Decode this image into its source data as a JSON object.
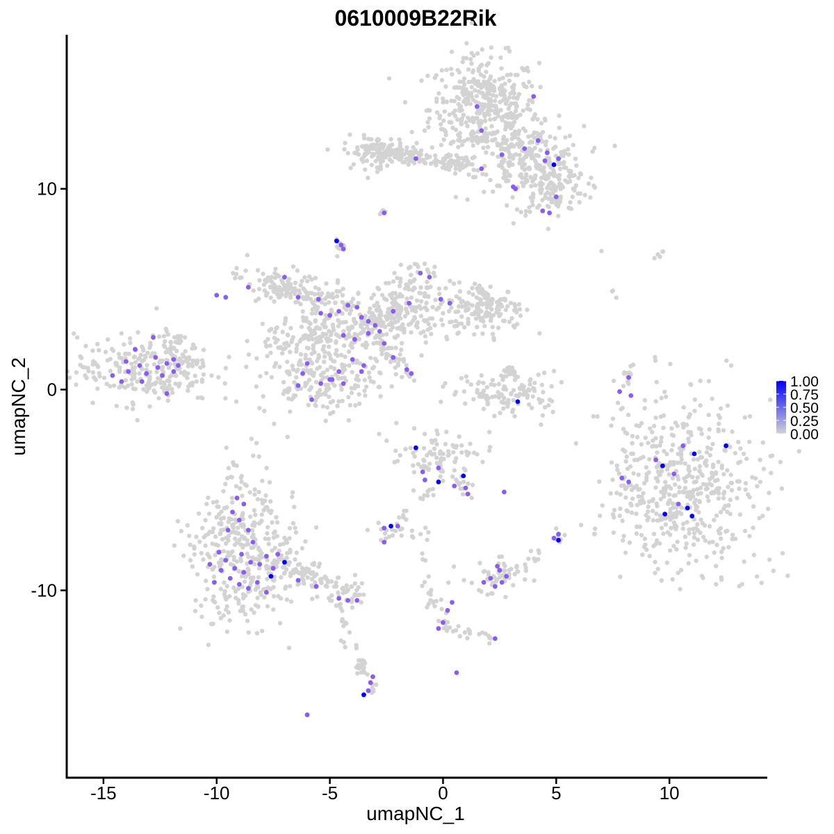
{
  "chart_data": {
    "type": "scatter",
    "title": "0610009B22Rik",
    "xlabel": "umapNC_1",
    "ylabel": "umapNC_2",
    "xlim": [
      -16.5,
      14.2
    ],
    "ylim": [
      -18.5,
      17.5
    ],
    "x_ticks": [
      -15,
      -10,
      -5,
      0,
      5,
      10
    ],
    "x_tick_labels": [
      "-15",
      "-10",
      "-5",
      "0",
      "5",
      "10"
    ],
    "y_ticks": [
      -10,
      0,
      10
    ],
    "y_tick_labels": [
      "-10",
      "0",
      "10"
    ],
    "grid": false,
    "legend_position": "right",
    "color_scale": {
      "low": "#d3d3d3",
      "high": "#0000ff",
      "range": [
        0,
        1
      ],
      "ticks": [
        1.0,
        0.75,
        0.5,
        0.25,
        0.0
      ],
      "tick_labels": [
        "1.00",
        "0.75",
        "0.50",
        "0.25",
        "0.00"
      ]
    },
    "expressing_cells": [
      {
        "x": 4.0,
        "y": 14.6,
        "v": 0.5
      },
      {
        "x": 1.5,
        "y": 14.1,
        "v": 0.5
      },
      {
        "x": 1.7,
        "y": 12.9,
        "v": 0.6
      },
      {
        "x": 3.6,
        "y": 12.0,
        "v": 0.5
      },
      {
        "x": 4.6,
        "y": 11.8,
        "v": 0.6
      },
      {
        "x": 4.9,
        "y": 11.2,
        "v": 1.0
      },
      {
        "x": 4.5,
        "y": 11.4,
        "v": 0.6
      },
      {
        "x": 5.1,
        "y": 11.5,
        "v": 0.5
      },
      {
        "x": 3.1,
        "y": 10.1,
        "v": 0.6
      },
      {
        "x": 3.2,
        "y": 10.0,
        "v": 0.5
      },
      {
        "x": 5.0,
        "y": 9.6,
        "v": 0.5
      },
      {
        "x": 4.4,
        "y": 8.9,
        "v": 0.5
      },
      {
        "x": 4.7,
        "y": 8.8,
        "v": 0.6
      },
      {
        "x": 1.7,
        "y": 11.0,
        "v": 0.5
      },
      {
        "x": 2.6,
        "y": 11.7,
        "v": 0.5
      },
      {
        "x": 4.2,
        "y": 12.4,
        "v": 0.4
      },
      {
        "x": -1.2,
        "y": 11.5,
        "v": 0.5
      },
      {
        "x": -2.6,
        "y": 8.8,
        "v": 0.5
      },
      {
        "x": -4.7,
        "y": 7.4,
        "v": 1.0
      },
      {
        "x": -4.5,
        "y": 7.2,
        "v": 0.6
      },
      {
        "x": -4.4,
        "y": 7.0,
        "v": 0.5
      },
      {
        "x": -10.0,
        "y": 4.7,
        "v": 0.5
      },
      {
        "x": -8.6,
        "y": 5.1,
        "v": 0.5
      },
      {
        "x": -9.6,
        "y": 4.6,
        "v": 0.6
      },
      {
        "x": -6.4,
        "y": 4.6,
        "v": 0.5
      },
      {
        "x": -7.0,
        "y": 5.6,
        "v": 0.6
      },
      {
        "x": -5.5,
        "y": 4.5,
        "v": 0.5
      },
      {
        "x": -5.4,
        "y": 3.8,
        "v": 0.6
      },
      {
        "x": -5.0,
        "y": 3.7,
        "v": 0.6
      },
      {
        "x": -4.6,
        "y": 3.9,
        "v": 0.6
      },
      {
        "x": -4.2,
        "y": 4.2,
        "v": 0.6
      },
      {
        "x": -3.8,
        "y": 4.1,
        "v": 0.5
      },
      {
        "x": -3.6,
        "y": 3.6,
        "v": 0.6
      },
      {
        "x": -3.3,
        "y": 3.4,
        "v": 0.6
      },
      {
        "x": -3.0,
        "y": 3.2,
        "v": 0.6
      },
      {
        "x": -2.8,
        "y": 2.9,
        "v": 0.6
      },
      {
        "x": -2.6,
        "y": 2.3,
        "v": 0.5
      },
      {
        "x": -3.3,
        "y": 2.8,
        "v": 0.6
      },
      {
        "x": -3.9,
        "y": 2.5,
        "v": 0.6
      },
      {
        "x": -4.4,
        "y": 2.7,
        "v": 0.6
      },
      {
        "x": -2.2,
        "y": 3.9,
        "v": 0.5
      },
      {
        "x": -1.5,
        "y": 4.3,
        "v": 0.5
      },
      {
        "x": -1.0,
        "y": 5.8,
        "v": 0.6
      },
      {
        "x": -0.6,
        "y": 5.6,
        "v": 0.5
      },
      {
        "x": -0.1,
        "y": 4.5,
        "v": 0.5
      },
      {
        "x": 0.3,
        "y": 4.3,
        "v": 0.5
      },
      {
        "x": -2.2,
        "y": 1.6,
        "v": 0.5
      },
      {
        "x": -1.6,
        "y": 1.0,
        "v": 0.5
      },
      {
        "x": -1.4,
        "y": 0.8,
        "v": 0.4
      },
      {
        "x": -3.5,
        "y": 1.2,
        "v": 0.5
      },
      {
        "x": -4.0,
        "y": 1.5,
        "v": 0.6
      },
      {
        "x": -4.6,
        "y": 0.9,
        "v": 0.6
      },
      {
        "x": -5.0,
        "y": 0.5,
        "v": 0.6
      },
      {
        "x": -5.4,
        "y": 0.3,
        "v": 0.8
      },
      {
        "x": -4.9,
        "y": 0.5,
        "v": 0.7
      },
      {
        "x": -6.0,
        "y": 1.3,
        "v": 0.6
      },
      {
        "x": -6.2,
        "y": 0.8,
        "v": 0.6
      },
      {
        "x": -6.4,
        "y": 0.2,
        "v": 0.5
      },
      {
        "x": -5.8,
        "y": -0.5,
        "v": 0.9
      },
      {
        "x": -4.4,
        "y": 0.3,
        "v": 0.5
      },
      {
        "x": -3.6,
        "y": 0.9,
        "v": 0.6
      },
      {
        "x": -12.8,
        "y": 2.6,
        "v": 0.5
      },
      {
        "x": -13.6,
        "y": 2.0,
        "v": 0.6
      },
      {
        "x": -14.0,
        "y": 1.4,
        "v": 0.6
      },
      {
        "x": -13.4,
        "y": 1.2,
        "v": 0.6
      },
      {
        "x": -13.1,
        "y": 0.8,
        "v": 0.6
      },
      {
        "x": -12.6,
        "y": 1.1,
        "v": 0.6
      },
      {
        "x": -12.2,
        "y": 1.3,
        "v": 0.6
      },
      {
        "x": -11.9,
        "y": 1.5,
        "v": 0.6
      },
      {
        "x": -11.7,
        "y": 1.2,
        "v": 0.6
      },
      {
        "x": -12.4,
        "y": 0.7,
        "v": 0.6
      },
      {
        "x": -14.6,
        "y": 0.7,
        "v": 0.6
      },
      {
        "x": -14.2,
        "y": 0.4,
        "v": 0.6
      },
      {
        "x": -13.9,
        "y": 0.9,
        "v": 0.6
      },
      {
        "x": -13.3,
        "y": 0.4,
        "v": 0.6
      },
      {
        "x": -12.2,
        "y": -0.2,
        "v": 0.6
      },
      {
        "x": -11.9,
        "y": 0.9,
        "v": 0.6
      },
      {
        "x": -12.7,
        "y": 1.6,
        "v": 0.5
      },
      {
        "x": 8.2,
        "y": 0.6,
        "v": 0.5
      },
      {
        "x": 7.8,
        "y": -0.1,
        "v": 0.5
      },
      {
        "x": 8.3,
        "y": -0.3,
        "v": 0.5
      },
      {
        "x": 3.3,
        "y": -0.6,
        "v": 1.0
      },
      {
        "x": -1.2,
        "y": -2.9,
        "v": 1.0
      },
      {
        "x": -0.9,
        "y": -4.1,
        "v": 0.6
      },
      {
        "x": -0.8,
        "y": -4.5,
        "v": 0.6
      },
      {
        "x": -0.2,
        "y": -3.9,
        "v": 0.9
      },
      {
        "x": -0.2,
        "y": -4.6,
        "v": 1.0
      },
      {
        "x": 0.9,
        "y": -4.3,
        "v": 1.0
      },
      {
        "x": 1.1,
        "y": -5.2,
        "v": 0.9
      },
      {
        "x": 0.5,
        "y": -4.8,
        "v": 0.6
      },
      {
        "x": 2.7,
        "y": -5.1,
        "v": 0.5
      },
      {
        "x": 1.0,
        "y": -4.9,
        "v": 0.5
      },
      {
        "x": -2.3,
        "y": -6.8,
        "v": 1.0
      },
      {
        "x": -2.6,
        "y": -6.9,
        "v": 0.6
      },
      {
        "x": -2.0,
        "y": -6.8,
        "v": 0.5
      },
      {
        "x": -2.6,
        "y": -7.6,
        "v": 0.5
      },
      {
        "x": 5.1,
        "y": -7.2,
        "v": 0.7
      },
      {
        "x": 5.1,
        "y": -7.5,
        "v": 1.0
      },
      {
        "x": 4.9,
        "y": -7.4,
        "v": 0.6
      },
      {
        "x": 1.8,
        "y": -9.6,
        "v": 0.7
      },
      {
        "x": 2.1,
        "y": -9.4,
        "v": 0.7
      },
      {
        "x": 2.3,
        "y": -9.8,
        "v": 0.6
      },
      {
        "x": 2.5,
        "y": -9.0,
        "v": 0.6
      },
      {
        "x": 2.6,
        "y": -9.6,
        "v": 0.6
      },
      {
        "x": 2.8,
        "y": -9.3,
        "v": 0.6
      },
      {
        "x": 2.4,
        "y": -8.8,
        "v": 0.6
      },
      {
        "x": 0.4,
        "y": -10.6,
        "v": 0.6
      },
      {
        "x": 0.2,
        "y": -11.0,
        "v": 0.6
      },
      {
        "x": -0.2,
        "y": -11.9,
        "v": 0.6
      },
      {
        "x": 0.0,
        "y": -11.6,
        "v": 0.6
      },
      {
        "x": 2.3,
        "y": -12.4,
        "v": 0.6
      },
      {
        "x": 0.6,
        "y": -14.1,
        "v": 0.5
      },
      {
        "x": -3.5,
        "y": -15.2,
        "v": 1.0
      },
      {
        "x": -3.3,
        "y": -15.0,
        "v": 0.7
      },
      {
        "x": -3.2,
        "y": -14.6,
        "v": 0.7
      },
      {
        "x": -3.1,
        "y": -14.3,
        "v": 0.6
      },
      {
        "x": -6.0,
        "y": -16.2,
        "v": 0.5
      },
      {
        "x": -9.1,
        "y": -5.4,
        "v": 0.6
      },
      {
        "x": -8.8,
        "y": -5.7,
        "v": 0.9
      },
      {
        "x": -9.3,
        "y": -6.1,
        "v": 0.6
      },
      {
        "x": -9.0,
        "y": -6.5,
        "v": 0.6
      },
      {
        "x": -9.5,
        "y": -7.0,
        "v": 0.9
      },
      {
        "x": -8.6,
        "y": -7.0,
        "v": 0.6
      },
      {
        "x": -8.4,
        "y": -7.6,
        "v": 0.6
      },
      {
        "x": -8.9,
        "y": -8.2,
        "v": 0.6
      },
      {
        "x": -9.9,
        "y": -8.1,
        "v": 0.9
      },
      {
        "x": -9.6,
        "y": -8.5,
        "v": 0.6
      },
      {
        "x": -9.2,
        "y": -8.9,
        "v": 0.6
      },
      {
        "x": -8.8,
        "y": -9.1,
        "v": 0.6
      },
      {
        "x": -8.5,
        "y": -8.6,
        "v": 0.6
      },
      {
        "x": -8.1,
        "y": -8.7,
        "v": 0.9
      },
      {
        "x": -7.8,
        "y": -8.3,
        "v": 0.6
      },
      {
        "x": -7.5,
        "y": -8.9,
        "v": 0.6
      },
      {
        "x": -7.6,
        "y": -9.3,
        "v": 1.0
      },
      {
        "x": -8.2,
        "y": -9.6,
        "v": 0.6
      },
      {
        "x": -8.6,
        "y": -9.9,
        "v": 0.6
      },
      {
        "x": -9.0,
        "y": -9.7,
        "v": 0.6
      },
      {
        "x": -9.4,
        "y": -9.4,
        "v": 0.6
      },
      {
        "x": -9.8,
        "y": -9.0,
        "v": 0.6
      },
      {
        "x": -10.1,
        "y": -9.6,
        "v": 0.6
      },
      {
        "x": -10.3,
        "y": -8.7,
        "v": 0.6
      },
      {
        "x": -7.3,
        "y": -8.2,
        "v": 0.6
      },
      {
        "x": -7.0,
        "y": -8.6,
        "v": 1.0
      },
      {
        "x": -7.8,
        "y": -10.1,
        "v": 0.6
      },
      {
        "x": -6.4,
        "y": -9.5,
        "v": 0.5
      },
      {
        "x": -5.6,
        "y": -9.8,
        "v": 0.5
      },
      {
        "x": -4.6,
        "y": -10.4,
        "v": 0.5
      },
      {
        "x": -4.2,
        "y": -10.5,
        "v": 0.5
      },
      {
        "x": -3.8,
        "y": -10.5,
        "v": 0.5
      },
      {
        "x": 8.2,
        "y": -4.6,
        "v": 0.6
      },
      {
        "x": 7.9,
        "y": -4.4,
        "v": 0.6
      },
      {
        "x": 9.4,
        "y": -3.5,
        "v": 0.7
      },
      {
        "x": 9.7,
        "y": -3.8,
        "v": 1.0
      },
      {
        "x": 10.2,
        "y": -4.2,
        "v": 0.6
      },
      {
        "x": 10.6,
        "y": -2.8,
        "v": 0.6
      },
      {
        "x": 11.1,
        "y": -3.2,
        "v": 1.0
      },
      {
        "x": 11.0,
        "y": -6.3,
        "v": 1.0
      },
      {
        "x": 10.8,
        "y": -5.9,
        "v": 1.0
      },
      {
        "x": 9.8,
        "y": -6.2,
        "v": 1.0
      },
      {
        "x": 12.5,
        "y": -2.8,
        "v": 1.0
      },
      {
        "x": 10.4,
        "y": -5.7,
        "v": 0.6
      }
    ]
  }
}
